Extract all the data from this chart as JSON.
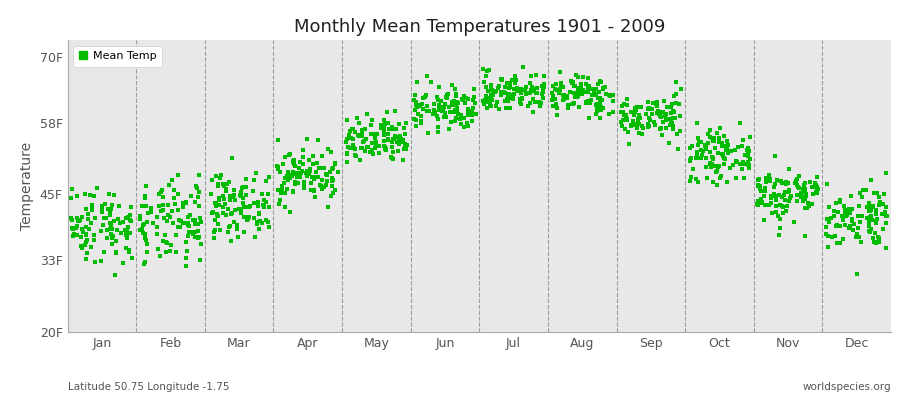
{
  "title": "Monthly Mean Temperatures 1901 - 2009",
  "ylabel": "Temperature",
  "xlabel_months": [
    "Jan",
    "Feb",
    "Mar",
    "Apr",
    "May",
    "Jun",
    "Jul",
    "Aug",
    "Sep",
    "Oct",
    "Nov",
    "Dec"
  ],
  "yticks": [
    20,
    33,
    45,
    58,
    70
  ],
  "ytick_labels": [
    "20F",
    "33F",
    "45F",
    "58F",
    "70F"
  ],
  "ylim": [
    20,
    73
  ],
  "dot_color": "#00BB00",
  "bg_color": "#e8e8e8",
  "fig_bg_color": "#ffffff",
  "legend_label": "Mean Temp",
  "footnote_left": "Latitude 50.75 Longitude -1.75",
  "footnote_right": "worldspecies.org",
  "years": 109,
  "start_year": 1901,
  "end_year": 2009,
  "monthly_mean_F": [
    39.5,
    39.5,
    43.0,
    48.5,
    54.5,
    60.5,
    63.5,
    63.0,
    59.0,
    52.0,
    45.0,
    41.0
  ],
  "monthly_std_F": [
    3.5,
    3.8,
    2.8,
    2.5,
    2.2,
    2.0,
    1.8,
    1.8,
    2.0,
    2.2,
    2.5,
    3.0
  ]
}
